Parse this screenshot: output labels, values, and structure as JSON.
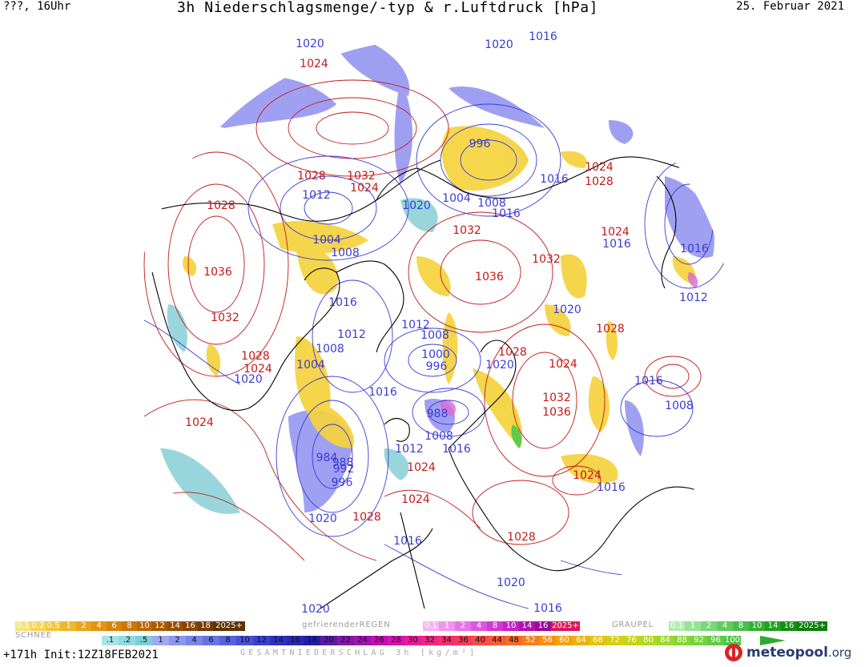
{
  "header": {
    "left": "???, 16Uhr",
    "title": "3h Niederschlagsmenge/-typ & r.Luftdruck [hPa]",
    "date": "25. Februar 2021"
  },
  "map": {
    "pressure_labels": [
      {
        "t": "1020",
        "c": "blue"
      },
      {
        "t": "1024",
        "c": "red"
      },
      {
        "t": "1020",
        "c": "blue"
      },
      {
        "t": "1016",
        "c": "blue"
      },
      {
        "t": "996",
        "c": "blue"
      },
      {
        "t": "1028",
        "c": "red"
      },
      {
        "t": "1032",
        "c": "red"
      },
      {
        "t": "1012",
        "c": "blue"
      },
      {
        "t": "1024",
        "c": "red"
      },
      {
        "t": "1004",
        "c": "blue"
      },
      {
        "t": "1008",
        "c": "blue"
      },
      {
        "t": "1016",
        "c": "blue"
      },
      {
        "t": "1020",
        "c": "blue"
      },
      {
        "t": "1016",
        "c": "blue"
      },
      {
        "t": "1024",
        "c": "red"
      },
      {
        "t": "1028",
        "c": "red"
      },
      {
        "t": "1028",
        "c": "red"
      },
      {
        "t": "1032",
        "c": "red"
      },
      {
        "t": "1004",
        "c": "blue"
      },
      {
        "t": "1008",
        "c": "blue"
      },
      {
        "t": "1036",
        "c": "red"
      },
      {
        "t": "1036",
        "c": "red"
      },
      {
        "t": "1032",
        "c": "red"
      },
      {
        "t": "1024",
        "c": "red"
      },
      {
        "t": "1016",
        "c": "blue"
      },
      {
        "t": "1016",
        "c": "blue"
      },
      {
        "t": "1016",
        "c": "blue"
      },
      {
        "t": "1032",
        "c": "red"
      },
      {
        "t": "1012",
        "c": "blue"
      },
      {
        "t": "1012",
        "c": "blue"
      },
      {
        "t": "1008",
        "c": "blue"
      },
      {
        "t": "1020",
        "c": "blue"
      },
      {
        "t": "1028",
        "c": "red"
      },
      {
        "t": "1012",
        "c": "blue"
      },
      {
        "t": "1008",
        "c": "blue"
      },
      {
        "t": "1000",
        "c": "blue"
      },
      {
        "t": "996",
        "c": "blue"
      },
      {
        "t": "1028",
        "c": "red"
      },
      {
        "t": "1020",
        "c": "blue"
      },
      {
        "t": "1024",
        "c": "red"
      },
      {
        "t": "1028",
        "c": "red"
      },
      {
        "t": "1024",
        "c": "red"
      },
      {
        "t": "1020",
        "c": "blue"
      },
      {
        "t": "1004",
        "c": "blue"
      },
      {
        "t": "1016",
        "c": "blue"
      },
      {
        "t": "1032",
        "c": "red"
      },
      {
        "t": "1036",
        "c": "red"
      },
      {
        "t": "1016",
        "c": "blue"
      },
      {
        "t": "1008",
        "c": "blue"
      },
      {
        "t": "1024",
        "c": "red"
      },
      {
        "t": "988",
        "c": "blue"
      },
      {
        "t": "984",
        "c": "blue"
      },
      {
        "t": "1008",
        "c": "blue"
      },
      {
        "t": "1016",
        "c": "blue"
      },
      {
        "t": "988",
        "c": "blue"
      },
      {
        "t": "992",
        "c": "blue"
      },
      {
        "t": "996",
        "c": "blue"
      },
      {
        "t": "1012",
        "c": "blue"
      },
      {
        "t": "1024",
        "c": "red"
      },
      {
        "t": "1024",
        "c": "red"
      },
      {
        "t": "1016",
        "c": "blue"
      },
      {
        "t": "1024",
        "c": "red"
      },
      {
        "t": "1020",
        "c": "blue"
      },
      {
        "t": "1028",
        "c": "red"
      },
      {
        "t": "1016",
        "c": "blue"
      },
      {
        "t": "1028",
        "c": "red"
      },
      {
        "t": "1020",
        "c": "blue"
      },
      {
        "t": "1016",
        "c": "blue"
      },
      {
        "t": "1020",
        "c": "blue"
      }
    ]
  },
  "legend": {
    "snow_label": "SCHNEE",
    "snow": [
      "0.1",
      "0.2",
      "0.5",
      "1",
      "2",
      "4",
      "6",
      "8",
      "10",
      "12",
      "14",
      "16",
      "18",
      "2025+"
    ],
    "freezing_rain_label": "gefrierenderREGEN",
    "freezing_rain": [
      "0.1",
      "1",
      "2",
      "4",
      "8",
      "10",
      "14",
      "16",
      "2025+"
    ],
    "graupel_label": "GRAUPEL",
    "graupel": [
      "0.1",
      "1",
      "2",
      "4",
      "8",
      "10",
      "14",
      "16",
      "2025+"
    ],
    "total": [
      ".1",
      ".2",
      ".5",
      "1",
      "2",
      "4",
      "6",
      "8",
      "10",
      "12",
      "14",
      "16",
      "18",
      "20",
      "22",
      "24",
      "26",
      "28",
      "30",
      "32",
      "34",
      "36",
      "40",
      "44",
      "48",
      "52",
      "56",
      "60",
      "64",
      "68",
      "72",
      "76",
      "80",
      "84",
      "88",
      "92",
      "96",
      "100"
    ],
    "total_label": "GESAMTNIEDERSCHLAG 3h [kg/m²]"
  },
  "footer": {
    "left": "+171h Init:12Z18FEB2021",
    "logo_text": "meteopool",
    "logo_tld": ".org"
  },
  "colors": {
    "isobar_low": "#3b3bd6",
    "isobar_high": "#c11a1a",
    "snow_fill": "#f5d23c",
    "rain_fill": "#8f8ff0",
    "drizzle_fill": "#8ed2d8"
  }
}
